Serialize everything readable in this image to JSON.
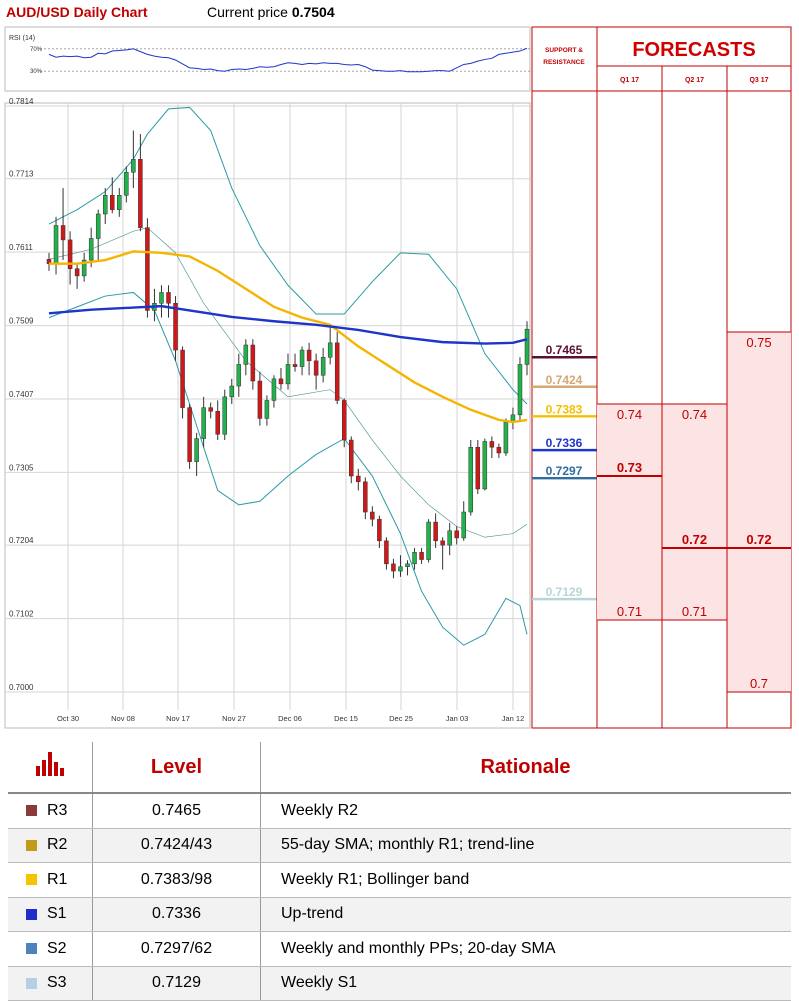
{
  "header": {
    "title": "AUD/USD Daily Chart",
    "price_label": "Current price",
    "price_value": "0.7504"
  },
  "rsi": {
    "label": "RSI (14)",
    "levels": [
      "70%",
      "30%"
    ],
    "values": [
      60,
      55,
      57,
      56,
      57,
      54,
      55,
      62,
      61,
      66,
      67,
      68,
      70,
      65,
      60,
      57,
      55,
      54,
      50,
      43,
      36,
      35,
      33,
      34,
      31,
      30,
      33,
      34,
      33,
      35,
      38,
      37,
      38,
      42,
      45,
      44,
      42,
      44,
      43,
      45,
      44,
      44,
      42,
      41,
      42,
      38,
      32,
      31,
      30,
      30,
      31,
      29,
      29,
      29,
      30,
      31,
      31,
      30,
      36,
      42,
      44,
      48,
      51,
      53,
      60,
      62,
      64,
      66,
      71
    ]
  },
  "chart_data": {
    "type": "candlestick",
    "title": "AUD/USD Daily Chart",
    "y_ticks": [
      "0.7814",
      "0.7713",
      "0.7611",
      "0.7509",
      "0.7407",
      "0.7305",
      "0.7204",
      "0.7102",
      "0.7000"
    ],
    "ylim": [
      0.7,
      0.7814
    ],
    "x_ticks": [
      "Oct 30",
      "Nov 08",
      "Nov 17",
      "Nov 27",
      "Dec 06",
      "Dec 15",
      "Dec 25",
      "Jan 03",
      "Jan 12"
    ],
    "candles": [
      [
        0.7601,
        0.7595,
        0.761,
        0.7585
      ],
      [
        0.7595,
        0.7648,
        0.766,
        0.758
      ],
      [
        0.7648,
        0.7628,
        0.77,
        0.76
      ],
      [
        0.7628,
        0.7588,
        0.764,
        0.7566
      ],
      [
        0.7588,
        0.7578,
        0.7596,
        0.756
      ],
      [
        0.7578,
        0.76,
        0.761,
        0.757
      ],
      [
        0.76,
        0.763,
        0.7645,
        0.759
      ],
      [
        0.763,
        0.7664,
        0.767,
        0.76
      ],
      [
        0.7664,
        0.769,
        0.77,
        0.765
      ],
      [
        0.769,
        0.767,
        0.7715,
        0.7665
      ],
      [
        0.767,
        0.769,
        0.77,
        0.766
      ],
      [
        0.769,
        0.7722,
        0.773,
        0.768
      ],
      [
        0.7722,
        0.774,
        0.778,
        0.77
      ],
      [
        0.774,
        0.7645,
        0.7775,
        0.764
      ],
      [
        0.7645,
        0.753,
        0.7658,
        0.752
      ],
      [
        0.753,
        0.754,
        0.756,
        0.7515
      ],
      [
        0.754,
        0.7555,
        0.7565,
        0.752
      ],
      [
        0.7555,
        0.754,
        0.7565,
        0.752
      ],
      [
        0.754,
        0.7475,
        0.755,
        0.746
      ],
      [
        0.7475,
        0.7395,
        0.748,
        0.738
      ],
      [
        0.7395,
        0.732,
        0.74,
        0.731
      ],
      [
        0.732,
        0.7352,
        0.736,
        0.73
      ],
      [
        0.7352,
        0.7395,
        0.741,
        0.734
      ],
      [
        0.7395,
        0.739,
        0.7402,
        0.738
      ],
      [
        0.739,
        0.7358,
        0.7405,
        0.735
      ],
      [
        0.7358,
        0.741,
        0.742,
        0.735
      ],
      [
        0.741,
        0.7425,
        0.7435,
        0.74
      ],
      [
        0.7425,
        0.7455,
        0.747,
        0.741
      ],
      [
        0.7455,
        0.7482,
        0.749,
        0.744
      ],
      [
        0.7482,
        0.7432,
        0.749,
        0.742
      ],
      [
        0.7432,
        0.738,
        0.7445,
        0.737
      ],
      [
        0.738,
        0.7405,
        0.7412,
        0.737
      ],
      [
        0.7405,
        0.7435,
        0.744,
        0.7395
      ],
      [
        0.7435,
        0.7428,
        0.745,
        0.742
      ],
      [
        0.7428,
        0.7455,
        0.747,
        0.742
      ],
      [
        0.7455,
        0.7452,
        0.747,
        0.7445
      ],
      [
        0.7452,
        0.7475,
        0.748,
        0.744
      ],
      [
        0.7475,
        0.746,
        0.7485,
        0.744
      ],
      [
        0.746,
        0.744,
        0.747,
        0.742
      ],
      [
        0.744,
        0.7465,
        0.7478,
        0.743
      ],
      [
        0.7465,
        0.7485,
        0.751,
        0.7455
      ],
      [
        0.7485,
        0.7405,
        0.75,
        0.74
      ],
      [
        0.7405,
        0.735,
        0.7408,
        0.734
      ],
      [
        0.735,
        0.73,
        0.7355,
        0.729
      ],
      [
        0.73,
        0.7292,
        0.731,
        0.728
      ],
      [
        0.7292,
        0.725,
        0.7298,
        0.724
      ],
      [
        0.725,
        0.724,
        0.7258,
        0.723
      ],
      [
        0.724,
        0.721,
        0.7245,
        0.72
      ],
      [
        0.721,
        0.7178,
        0.7215,
        0.717
      ],
      [
        0.7178,
        0.7168,
        0.7185,
        0.7158
      ],
      [
        0.7168,
        0.7174,
        0.719,
        0.716
      ],
      [
        0.7174,
        0.7178,
        0.7183,
        0.7162
      ],
      [
        0.7178,
        0.7194,
        0.72,
        0.717
      ],
      [
        0.7194,
        0.7184,
        0.72,
        0.7178
      ],
      [
        0.7184,
        0.7236,
        0.724,
        0.718
      ],
      [
        0.7236,
        0.721,
        0.7248,
        0.72
      ],
      [
        0.721,
        0.7204,
        0.7215,
        0.717
      ],
      [
        0.7204,
        0.7224,
        0.7235,
        0.719
      ],
      [
        0.7224,
        0.7214,
        0.723,
        0.7205
      ],
      [
        0.7214,
        0.725,
        0.7265,
        0.721
      ],
      [
        0.725,
        0.734,
        0.735,
        0.7245
      ],
      [
        0.734,
        0.7282,
        0.735,
        0.7275
      ],
      [
        0.7282,
        0.7348,
        0.7352,
        0.728
      ],
      [
        0.7348,
        0.734,
        0.7355,
        0.7325
      ],
      [
        0.734,
        0.7332,
        0.7345,
        0.7325
      ],
      [
        0.7332,
        0.7375,
        0.738,
        0.7328
      ],
      [
        0.7375,
        0.7385,
        0.7395,
        0.7365
      ],
      [
        0.7385,
        0.7455,
        0.7465,
        0.7375
      ],
      [
        0.7455,
        0.7504,
        0.7515,
        0.744
      ]
    ],
    "indicators": {
      "sma20": {
        "color": "#3a8a8a",
        "points": [
          [
            0,
            0.7601
          ],
          [
            6,
            0.7615
          ],
          [
            12,
            0.764
          ],
          [
            14,
            0.7645
          ],
          [
            18,
            0.761
          ],
          [
            22,
            0.754
          ],
          [
            28,
            0.746
          ],
          [
            34,
            0.741
          ],
          [
            40,
            0.742
          ],
          [
            42,
            0.7405
          ],
          [
            46,
            0.735
          ],
          [
            50,
            0.73
          ],
          [
            54,
            0.726
          ],
          [
            58,
            0.723
          ],
          [
            62,
            0.7215
          ],
          [
            66,
            0.722
          ],
          [
            68,
            0.7233
          ]
        ]
      },
      "sma55": {
        "color": "#f4b400",
        "points": [
          [
            0,
            0.7595
          ],
          [
            4,
            0.7595
          ],
          [
            8,
            0.76
          ],
          [
            12,
            0.7612
          ],
          [
            16,
            0.761
          ],
          [
            20,
            0.7605
          ],
          [
            24,
            0.7585
          ],
          [
            28,
            0.756
          ],
          [
            32,
            0.7535
          ],
          [
            36,
            0.752
          ],
          [
            40,
            0.751
          ],
          [
            44,
            0.748
          ],
          [
            48,
            0.7455
          ],
          [
            52,
            0.743
          ],
          [
            56,
            0.741
          ],
          [
            60,
            0.7392
          ],
          [
            64,
            0.7378
          ],
          [
            66,
            0.7375
          ],
          [
            68,
            0.7378
          ]
        ]
      },
      "sma200": {
        "color": "#1f35c8",
        "points": [
          [
            0,
            0.7526
          ],
          [
            6,
            0.7531
          ],
          [
            12,
            0.7534
          ],
          [
            16,
            0.7536
          ],
          [
            20,
            0.753
          ],
          [
            26,
            0.7521
          ],
          [
            32,
            0.7515
          ],
          [
            38,
            0.751
          ],
          [
            44,
            0.7503
          ],
          [
            50,
            0.7493
          ],
          [
            56,
            0.7486
          ],
          [
            62,
            0.7484
          ],
          [
            66,
            0.7485
          ],
          [
            68,
            0.749
          ]
        ]
      },
      "bollinger_upper": {
        "color": "#2a9aa4",
        "points": [
          [
            0,
            0.765
          ],
          [
            4,
            0.767
          ],
          [
            8,
            0.7695
          ],
          [
            12,
            0.774
          ],
          [
            14,
            0.7775
          ],
          [
            17,
            0.781
          ],
          [
            20,
            0.7812
          ],
          [
            23,
            0.778
          ],
          [
            26,
            0.77
          ],
          [
            30,
            0.762
          ],
          [
            34,
            0.7565
          ],
          [
            38,
            0.7525
          ],
          [
            42,
            0.7525
          ],
          [
            46,
            0.757
          ],
          [
            50,
            0.761
          ],
          [
            54,
            0.7608
          ],
          [
            58,
            0.756
          ],
          [
            62,
            0.747
          ],
          [
            66,
            0.742
          ],
          [
            68,
            0.74
          ]
        ]
      },
      "bollinger_lower": {
        "color": "#2a9aa4",
        "points": [
          [
            0,
            0.752
          ],
          [
            4,
            0.7535
          ],
          [
            8,
            0.755
          ],
          [
            12,
            0.7555
          ],
          [
            15,
            0.753
          ],
          [
            18,
            0.746
          ],
          [
            21,
            0.737
          ],
          [
            24,
            0.728
          ],
          [
            27,
            0.726
          ],
          [
            30,
            0.7265
          ],
          [
            34,
            0.73
          ],
          [
            38,
            0.733
          ],
          [
            42,
            0.7352
          ],
          [
            46,
            0.73
          ],
          [
            50,
            0.722
          ],
          [
            53,
            0.714
          ],
          [
            56,
            0.709
          ],
          [
            59,
            0.7065
          ],
          [
            62,
            0.708
          ],
          [
            65,
            0.713
          ],
          [
            67,
            0.712
          ],
          [
            68,
            0.708
          ]
        ]
      }
    },
    "support_resistance": {
      "header": "SUPPORT & RESISTANCE",
      "levels": [
        {
          "value": "0.7465",
          "color": "#5a1030",
          "level": 0.7465
        },
        {
          "value": "0.7424",
          "color": "#d4a873",
          "level": 0.7424
        },
        {
          "value": "0.7383",
          "color": "#f4c000",
          "level": 0.7383
        },
        {
          "value": "0.7336",
          "color": "#1f35c8",
          "level": 0.7336
        },
        {
          "value": "0.7297",
          "color": "#2f6f9f",
          "level": 0.7297
        },
        {
          "value": "0.7129",
          "color": "#b7d5d7",
          "level": 0.7129
        }
      ]
    },
    "forecasts": {
      "title": "FORECASTS",
      "columns": [
        {
          "label": "Q1 17",
          "high": "0.74",
          "mid": "0.73",
          "low": "0.71",
          "high_level": 0.74,
          "mid_level": 0.73,
          "low_level": 0.71
        },
        {
          "label": "Q2 17",
          "high": "0.74",
          "mid": "0.72",
          "low": "0.71",
          "high_level": 0.74,
          "mid_level": 0.72,
          "low_level": 0.71
        },
        {
          "label": "Q3 17",
          "high": "0.75",
          "mid": "0.72",
          "low": "0.7",
          "high_level": 0.75,
          "mid_level": 0.72,
          "low_level": 0.7
        }
      ]
    }
  },
  "table": {
    "headers": [
      "Level",
      "Rationale"
    ],
    "rows": [
      {
        "name": "R3",
        "color": "#8b3a3a",
        "level": "0.7465",
        "rationale": "Weekly R2"
      },
      {
        "name": "R2",
        "color": "#c49a1a",
        "level": "0.7424/43",
        "rationale": "55-day SMA; monthly R1; trend-line"
      },
      {
        "name": "R1",
        "color": "#f4c400",
        "level": "0.7383/98",
        "rationale": "Weekly R1; Bollinger band"
      },
      {
        "name": "S1",
        "color": "#1f2ec8",
        "level": "0.7336",
        "rationale": "Up-trend"
      },
      {
        "name": "S2",
        "color": "#4f81bd",
        "level": "0.7297/62",
        "rationale": "Weekly and monthly PPs; 20-day SMA"
      },
      {
        "name": "S3",
        "color": "#b4cfe6",
        "level": "0.7129",
        "rationale": "Weekly S1"
      }
    ]
  }
}
